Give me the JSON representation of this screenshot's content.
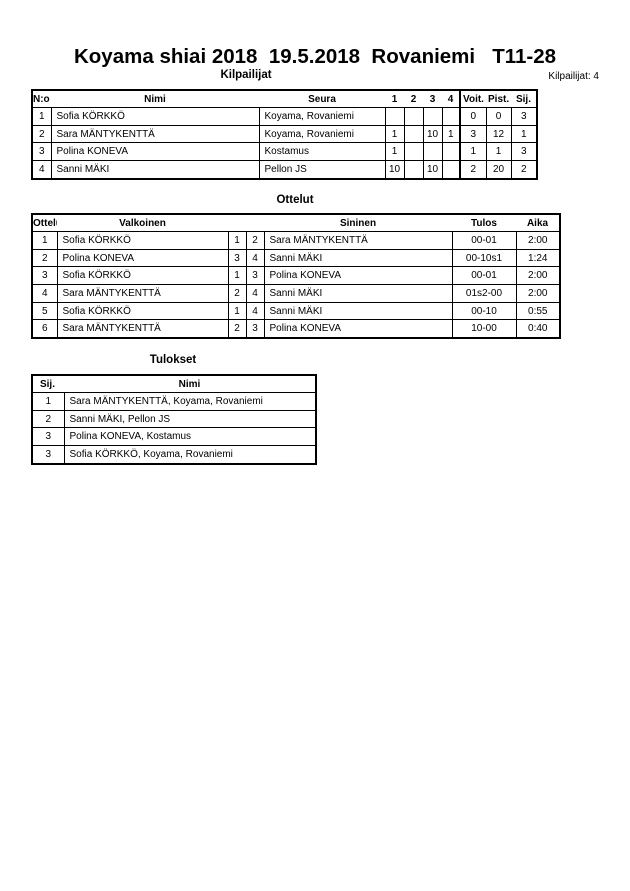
{
  "title": "Koyama shiai 2018  19.5.2018  Rovaniemi   T11-28",
  "competitors": {
    "heading": "Kilpailijat",
    "count_label": "Kilpailijat: 4",
    "headers": [
      "N:o",
      "Nimi",
      "Seura",
      "1",
      "2",
      "3",
      "4",
      "Voit.",
      "Pist.",
      "Sij."
    ],
    "rows": [
      [
        "1",
        "Sofia KÖRKKÖ",
        "Koyama, Rovaniemi",
        "",
        "",
        "",
        "",
        "0",
        "0",
        "3"
      ],
      [
        "2",
        "Sara MÄNTYKENTTÄ",
        "Koyama, Rovaniemi",
        "1",
        "",
        "10",
        "1",
        "3",
        "12",
        "1"
      ],
      [
        "3",
        "Polina KONEVA",
        "Kostamus",
        "1",
        "",
        "",
        "",
        "1",
        "1",
        "3"
      ],
      [
        "4",
        "Sanni MÄKI",
        "Pellon JS",
        "10",
        "",
        "10",
        "",
        "2",
        "20",
        "2"
      ]
    ]
  },
  "matches": {
    "heading": "Ottelut",
    "headers": [
      "Ottelu",
      "Valkoinen",
      "",
      "",
      "Sininen",
      "Tulos",
      "Aika"
    ],
    "rows": [
      [
        "1",
        "Sofia KÖRKKÖ",
        "1",
        "2",
        "Sara MÄNTYKENTTÄ",
        "00-01",
        "2:00"
      ],
      [
        "2",
        "Polina KONEVA",
        "3",
        "4",
        "Sanni MÄKI",
        "00-10s1",
        "1:24"
      ],
      [
        "3",
        "Sofia KÖRKKÖ",
        "1",
        "3",
        "Polina KONEVA",
        "00-01",
        "2:00"
      ],
      [
        "4",
        "Sara MÄNTYKENTTÄ",
        "2",
        "4",
        "Sanni MÄKI",
        "01s2-00",
        "2:00"
      ],
      [
        "5",
        "Sofia KÖRKKÖ",
        "1",
        "4",
        "Sanni MÄKI",
        "00-10",
        "0:55"
      ],
      [
        "6",
        "Sara MÄNTYKENTTÄ",
        "2",
        "3",
        "Polina KONEVA",
        "10-00",
        "0:40"
      ]
    ]
  },
  "results": {
    "heading": "Tulokset",
    "headers": [
      "Sij.",
      "Nimi"
    ],
    "rows": [
      [
        "1",
        "Sara MÄNTYKENTTÄ, Koyama, Rovaniemi"
      ],
      [
        "2",
        "Sanni MÄKI, Pellon JS"
      ],
      [
        "3",
        "Polina KONEVA, Kostamus"
      ],
      [
        "3",
        "Sofia KÖRKKÖ, Koyama, Rovaniemi"
      ]
    ]
  }
}
